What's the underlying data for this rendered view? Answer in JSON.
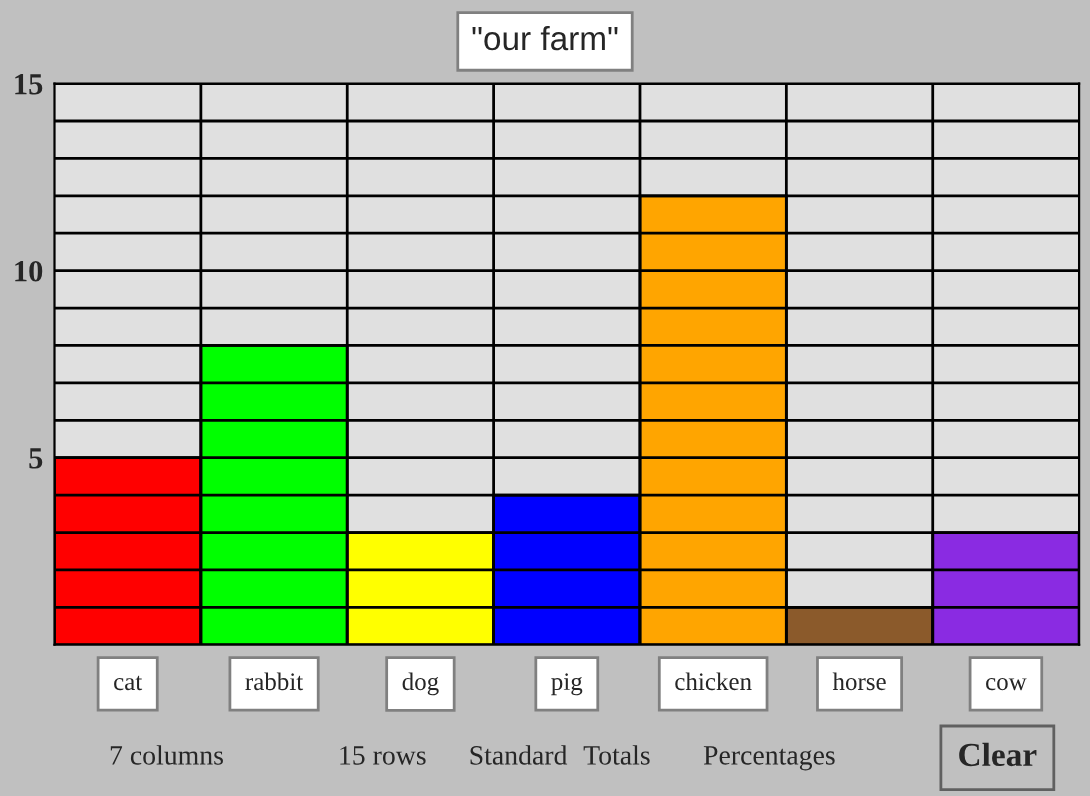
{
  "chart_data": {
    "type": "bar",
    "title": "\"our farm\"",
    "categories": [
      "cat",
      "rabbit",
      "dog",
      "pig",
      "chicken",
      "horse",
      "cow"
    ],
    "values": [
      5,
      8,
      3,
      4,
      12,
      1,
      3
    ],
    "colors": [
      "#ff0000",
      "#00ff00",
      "#ffff00",
      "#0000ff",
      "#ffa500",
      "#8b5a2b",
      "#8a2be2"
    ],
    "ylim": [
      0,
      15
    ],
    "yticks": [
      {
        "value": 1,
        "label": null
      },
      {
        "value": 2,
        "label": null
      },
      {
        "value": 3,
        "label": null
      },
      {
        "value": 4,
        "label": null
      },
      5,
      {
        "value": 6,
        "label": null
      },
      {
        "value": 7,
        "label": null
      },
      {
        "value": 8,
        "label": null
      },
      {
        "value": 9,
        "label": null
      },
      10,
      {
        "value": 11,
        "label": null
      },
      {
        "value": 12,
        "label": null
      },
      {
        "value": 13,
        "label": null
      },
      {
        "value": 14,
        "label": null
      },
      15
    ],
    "grid": "y",
    "annotations": [
      "7 columns",
      "15 rows",
      "Standard",
      "Totals",
      "Percentages",
      "Clear"
    ]
  }
}
